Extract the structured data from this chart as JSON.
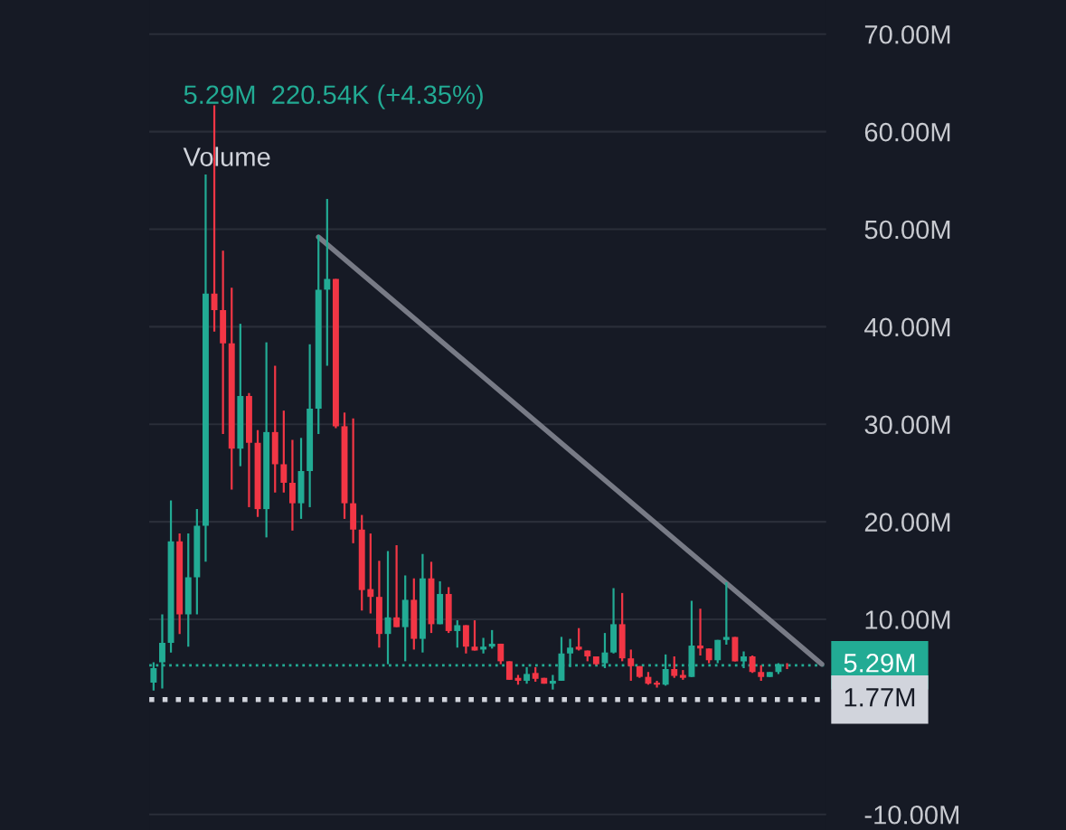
{
  "chart_data": {
    "type": "candlestick",
    "annotations": [
      "5.29M  220.54K (+4.35%)",
      "Volume"
    ],
    "categories": [
      null,
      null,
      null,
      null,
      null,
      null,
      null,
      null,
      null,
      null,
      null,
      null,
      null,
      null,
      null,
      null,
      null,
      null,
      null,
      null,
      null,
      null,
      null,
      null,
      null,
      null,
      null,
      null,
      null,
      null,
      null,
      null,
      null,
      null,
      null,
      null,
      null,
      null,
      null,
      null,
      null,
      null,
      null,
      null,
      null,
      null,
      null,
      null,
      null,
      null,
      null,
      null,
      null,
      null,
      null,
      null,
      null,
      null,
      null,
      null,
      null,
      null,
      null,
      null,
      null,
      null,
      null,
      null,
      null,
      null,
      null,
      null,
      null,
      null,
      null,
      null,
      null,
      null
    ],
    "ohlc": [
      [
        3.5,
        5.6,
        2.7,
        5.0
      ],
      [
        5.6,
        10.5,
        2.9,
        7.6
      ],
      [
        7.6,
        22.2,
        6.6,
        18.0
      ],
      [
        18.0,
        18.8,
        8.5,
        10.5
      ],
      [
        10.5,
        18.8,
        7.2,
        14.3
      ],
      [
        14.3,
        21.3,
        10.5,
        19.6
      ],
      [
        19.6,
        55.6,
        15.9,
        43.4
      ],
      [
        43.4,
        62.7,
        39.5,
        41.7
      ],
      [
        41.7,
        47.8,
        29.0,
        38.3
      ],
      [
        38.3,
        44.0,
        23.3,
        27.5
      ],
      [
        27.5,
        40.3,
        25.7,
        32.9
      ],
      [
        32.9,
        33.2,
        21.5,
        28.1
      ],
      [
        28.1,
        29.4,
        20.5,
        21.3
      ],
      [
        21.3,
        38.4,
        18.4,
        29.2
      ],
      [
        29.2,
        36.0,
        23.0,
        25.9
      ],
      [
        25.9,
        31.4,
        23.0,
        24.0
      ],
      [
        24.0,
        28.4,
        19.1,
        21.9
      ],
      [
        21.9,
        28.6,
        20.3,
        25.2
      ],
      [
        25.2,
        38.2,
        21.5,
        31.6
      ],
      [
        31.6,
        49.4,
        29.0,
        43.8
      ],
      [
        43.8,
        53.1,
        36.0,
        44.9
      ],
      [
        44.9,
        44.9,
        29.6,
        29.8
      ],
      [
        29.8,
        31.2,
        20.3,
        21.9
      ],
      [
        21.9,
        30.6,
        17.8,
        19.2
      ],
      [
        19.2,
        20.7,
        10.9,
        13.0
      ],
      [
        13.1,
        18.8,
        10.6,
        12.3
      ],
      [
        12.3,
        16.0,
        7.1,
        8.5
      ],
      [
        8.5,
        17.0,
        5.4,
        10.2
      ],
      [
        10.2,
        17.6,
        9.2,
        9.2
      ],
      [
        9.2,
        14.5,
        5.7,
        12.0
      ],
      [
        12.0,
        14.2,
        6.9,
        8.0
      ],
      [
        8.0,
        16.7,
        6.6,
        14.2
      ],
      [
        14.2,
        15.9,
        8.6,
        9.5
      ],
      [
        9.5,
        13.9,
        9.5,
        12.6
      ],
      [
        12.6,
        13.3,
        8.6,
        8.8
      ],
      [
        8.8,
        9.9,
        7.1,
        9.4
      ],
      [
        9.4,
        9.4,
        6.5,
        7.2
      ],
      [
        7.2,
        9.9,
        6.8,
        6.8
      ],
      [
        6.9,
        8.1,
        6.5,
        7.2
      ],
      [
        7.2,
        8.9,
        7.0,
        7.5
      ],
      [
        7.5,
        7.5,
        5.4,
        5.7
      ],
      [
        5.7,
        5.7,
        3.8,
        3.8
      ],
      [
        4.0,
        4.3,
        3.3,
        3.7
      ],
      [
        3.7,
        5.1,
        3.4,
        4.4
      ],
      [
        4.5,
        5.1,
        3.6,
        3.9
      ],
      [
        4.0,
        4.0,
        3.4,
        3.4
      ],
      [
        3.4,
        4.3,
        2.8,
        3.7
      ],
      [
        3.7,
        8.2,
        3.7,
        6.5
      ],
      [
        6.5,
        8.0,
        5.1,
        7.1
      ],
      [
        7.2,
        9.1,
        6.8,
        6.9
      ],
      [
        6.8,
        6.8,
        5.7,
        6.2
      ],
      [
        6.2,
        6.2,
        5.3,
        5.4
      ],
      [
        5.5,
        8.6,
        5.0,
        6.6
      ],
      [
        6.6,
        13.2,
        6.5,
        9.5
      ],
      [
        9.5,
        12.7,
        5.7,
        6.0
      ],
      [
        6.0,
        6.9,
        3.7,
        5.2
      ],
      [
        5.2,
        5.2,
        4.0,
        4.1
      ],
      [
        4.1,
        4.6,
        3.3,
        3.4
      ],
      [
        3.5,
        3.7,
        3.0,
        3.3
      ],
      [
        3.3,
        6.4,
        3.2,
        4.9
      ],
      [
        4.9,
        6.2,
        4.0,
        4.2
      ],
      [
        4.3,
        4.8,
        3.8,
        4.0
      ],
      [
        4.1,
        11.9,
        4.1,
        7.3
      ],
      [
        7.3,
        11.1,
        6.3,
        7.0
      ],
      [
        7.0,
        7.0,
        5.5,
        5.8
      ],
      [
        5.8,
        7.9,
        5.5,
        7.9
      ],
      [
        7.9,
        13.8,
        7.4,
        8.2
      ],
      [
        8.2,
        8.2,
        5.7,
        5.7
      ],
      [
        5.7,
        6.7,
        5.0,
        6.2
      ],
      [
        6.2,
        6.3,
        4.5,
        4.6
      ],
      [
        4.6,
        5.3,
        3.7,
        4.1
      ],
      [
        4.1,
        4.6,
        4.1,
        4.6
      ],
      [
        4.6,
        5.5,
        4.4,
        5.4
      ],
      [
        5.3,
        5.5,
        4.9,
        5.29
      ],
      null,
      null,
      null,
      null
    ],
    "series": [
      {
        "type": "line",
        "color": "#787b86",
        "values": [
          null,
          null,
          null,
          null,
          null,
          null,
          null,
          null,
          null,
          null,
          null,
          null,
          null,
          null,
          null,
          null,
          null,
          null,
          null,
          49.2,
          null,
          null,
          null,
          null,
          null,
          null,
          null,
          null,
          null,
          null,
          null,
          null,
          null,
          null,
          null,
          null,
          null,
          null,
          null,
          null,
          null,
          null,
          null,
          null,
          null,
          null,
          null,
          null,
          null,
          null,
          null,
          null,
          null,
          null,
          null,
          null,
          null,
          null,
          null,
          null,
          null,
          null,
          null,
          null,
          null,
          null,
          null,
          null,
          null,
          null,
          null,
          null,
          null,
          null,
          null,
          null,
          null,
          5.4
        ]
      }
    ],
    "ref_lines": [
      {
        "axis": "y",
        "value": 5.29,
        "label": "5.29M",
        "color": "#22ab94",
        "line_style": "dotted"
      },
      {
        "axis": "y",
        "value": 1.77,
        "label": "1.77M",
        "color": "#d1d4dc",
        "line_style": "dotted"
      }
    ],
    "ylim": [
      -11.6,
      73.5
    ],
    "yticks": [
      {
        "value": -10,
        "label": "-10.00M"
      },
      {
        "value": 10,
        "label": "10.00M"
      },
      {
        "value": 20,
        "label": "20.00M"
      },
      {
        "value": 30,
        "label": "30.00M"
      },
      {
        "value": 40,
        "label": "40.00M"
      },
      {
        "value": 50,
        "label": "50.00M"
      },
      {
        "value": 60,
        "label": "60.00M"
      },
      {
        "value": 70,
        "label": "70.00M"
      }
    ],
    "grid": true
  }
}
